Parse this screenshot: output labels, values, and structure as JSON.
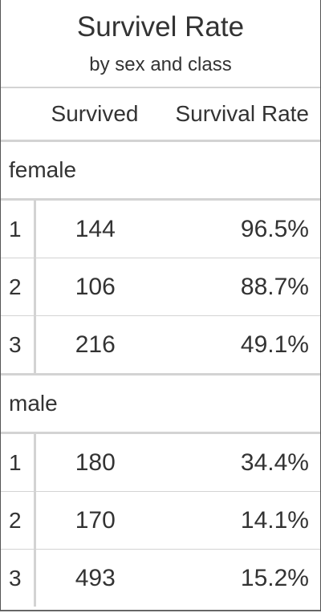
{
  "chart_data": {
    "type": "table",
    "title": "Survivel Rate",
    "subtitle": "by sex and class",
    "columns": [
      "Survived",
      "Survival Rate"
    ],
    "groups": [
      {
        "name": "female",
        "rows": [
          {
            "class": "1",
            "survived": "144",
            "rate": "96.5%"
          },
          {
            "class": "2",
            "survived": "106",
            "rate": "88.7%"
          },
          {
            "class": "3",
            "survived": "216",
            "rate": "49.1%"
          }
        ]
      },
      {
        "name": "male",
        "rows": [
          {
            "class": "1",
            "survived": "180",
            "rate": "34.4%"
          },
          {
            "class": "2",
            "survived": "170",
            "rate": "14.1%"
          },
          {
            "class": "3",
            "survived": "493",
            "rate": "15.2%"
          }
        ]
      }
    ]
  }
}
